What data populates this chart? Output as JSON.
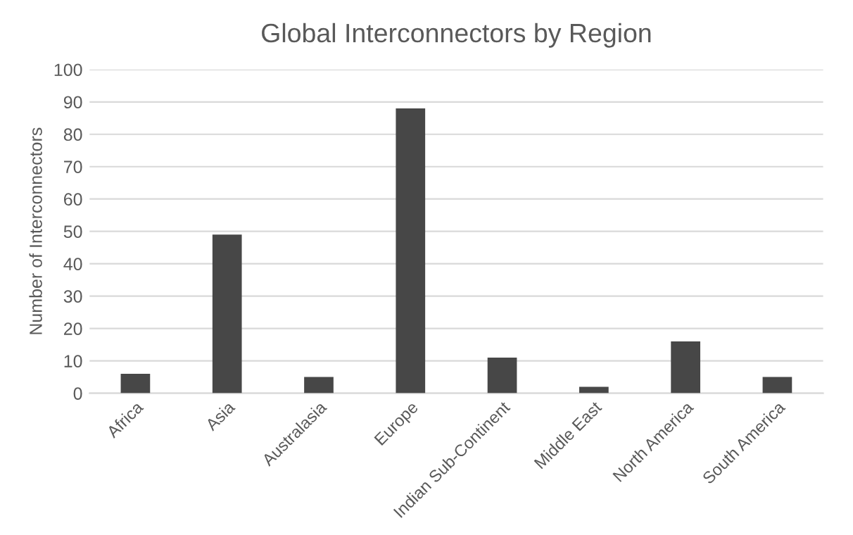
{
  "chart_data": {
    "type": "bar",
    "title": "Global Interconnectors by Region",
    "ylabel": "Number of Interconnectors",
    "categories": [
      "Africa",
      "Asia",
      "Australasia",
      "Europe",
      "Indian Sub-Continent",
      "Middle East",
      "North America",
      "South America"
    ],
    "values": [
      6,
      49,
      5,
      88,
      11,
      2,
      16,
      5
    ],
    "color": "#474747",
    "ylim": [
      0,
      100
    ],
    "yticks": [
      0,
      10,
      20,
      30,
      40,
      50,
      60,
      70,
      80,
      90,
      100
    ],
    "grid": "y"
  }
}
